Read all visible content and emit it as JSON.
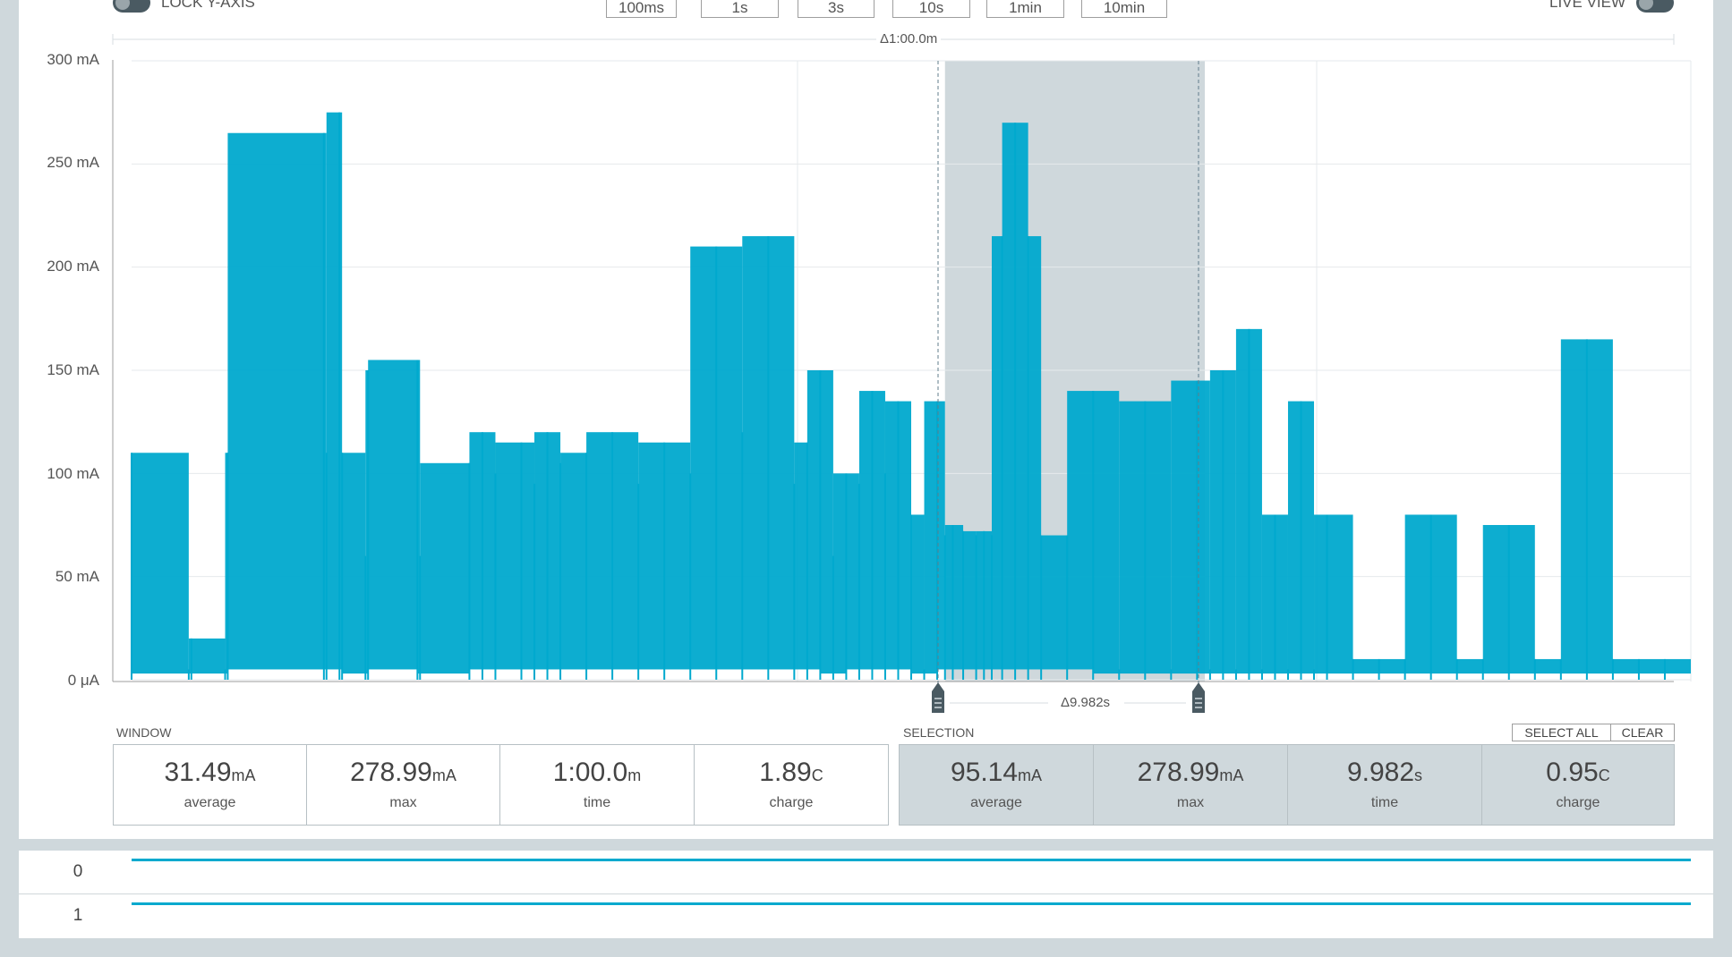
{
  "toolbar": {
    "lock_y_axis_label": "LOCK Y-AXIS",
    "live_view_label": "LIVE VIEW",
    "window_buttons": [
      "100ms",
      "1s",
      "3s",
      "10s",
      "1min",
      "10min"
    ]
  },
  "chart": {
    "window_delta": "Δ1:00.0m",
    "selection_delta": "Δ9.982s",
    "y_ticks": [
      "300 mA",
      "250 mA",
      "200 mA",
      "150 mA",
      "100 mA",
      "50 mA",
      "0 μA"
    ]
  },
  "window": {
    "label": "WINDOW",
    "stats": [
      {
        "value": "31.49",
        "unit": "mA",
        "label": "average"
      },
      {
        "value": "278.99",
        "unit": "mA",
        "label": "max"
      },
      {
        "value": "1:00.0",
        "unit": "m",
        "label": "time"
      },
      {
        "value": "1.89",
        "unit": "C",
        "label": "charge"
      }
    ]
  },
  "selection": {
    "label": "SELECTION",
    "select_all_label": "SELECT ALL",
    "clear_label": "CLEAR",
    "stats": [
      {
        "value": "95.14",
        "unit": "mA",
        "label": "average"
      },
      {
        "value": "278.99",
        "unit": "mA",
        "label": "max"
      },
      {
        "value": "9.982",
        "unit": "s",
        "label": "time"
      },
      {
        "value": "0.95",
        "unit": "C",
        "label": "charge"
      }
    ]
  },
  "digital_channels": [
    {
      "label": "0"
    },
    {
      "label": "1"
    }
  ],
  "colors": {
    "trace": "#00a9ce",
    "selection_fill": "#cfd8dc",
    "background": "#cfd8dc"
  },
  "chart_data": {
    "type": "line",
    "xlabel": "",
    "ylabel": "",
    "ylim": [
      0,
      300
    ],
    "y_unit": "mA",
    "grid": true,
    "series": [
      {
        "x": [
          0,
          2.2,
          2.3,
          3.6,
          3.7,
          7.4,
          7.5,
          8.0,
          8.1,
          9.0,
          9.1,
          11.0,
          11.1,
          13.0,
          13.5,
          14.0,
          15.0,
          15.5,
          16.0,
          16.5,
          17.5,
          18.5,
          19.5,
          20.5,
          21.5,
          22.5,
          23.5,
          24.5,
          25.5,
          26.0,
          26.5,
          27.0,
          27.5,
          28.0,
          28.5,
          29.0,
          29.5,
          30.0,
          30.5,
          31.0,
          31.3,
          31.6,
          32.0,
          32.5,
          32.8,
          33.1,
          33.5,
          34.0,
          34.5,
          35.0,
          36.0,
          37.0,
          38.0,
          39.0,
          40.0,
          41.0,
          41.5,
          42.0,
          42.5,
          43.0,
          43.5,
          44.0,
          44.5,
          45.0,
          45.5,
          46.0,
          47.0,
          48.0,
          49.0,
          50.0,
          51.0,
          52.0,
          53.0,
          54.0,
          55.0,
          56.0,
          57.0,
          58.0,
          59.0,
          60.0
        ],
        "y": [
          110,
          5,
          20,
          5,
          110,
          265,
          110,
          275,
          110,
          60,
          150,
          155,
          60,
          105,
          120,
          100,
          115,
          95,
          120,
          105,
          110,
          120,
          95,
          115,
          100,
          210,
          120,
          215,
          95,
          115,
          150,
          60,
          100,
          95,
          140,
          100,
          135,
          80,
          5,
          135,
          70,
          75,
          72,
          70,
          72,
          70,
          215,
          270,
          215,
          70,
          70,
          140,
          5,
          135,
          5,
          145,
          5,
          150,
          5,
          170,
          5,
          80,
          5,
          135,
          5,
          80,
          10,
          10,
          10,
          80,
          10,
          10,
          75,
          10,
          10,
          165,
          10,
          10,
          10,
          5
        ]
      }
    ],
    "selection": {
      "start": 31.3,
      "end": 41.3
    }
  }
}
